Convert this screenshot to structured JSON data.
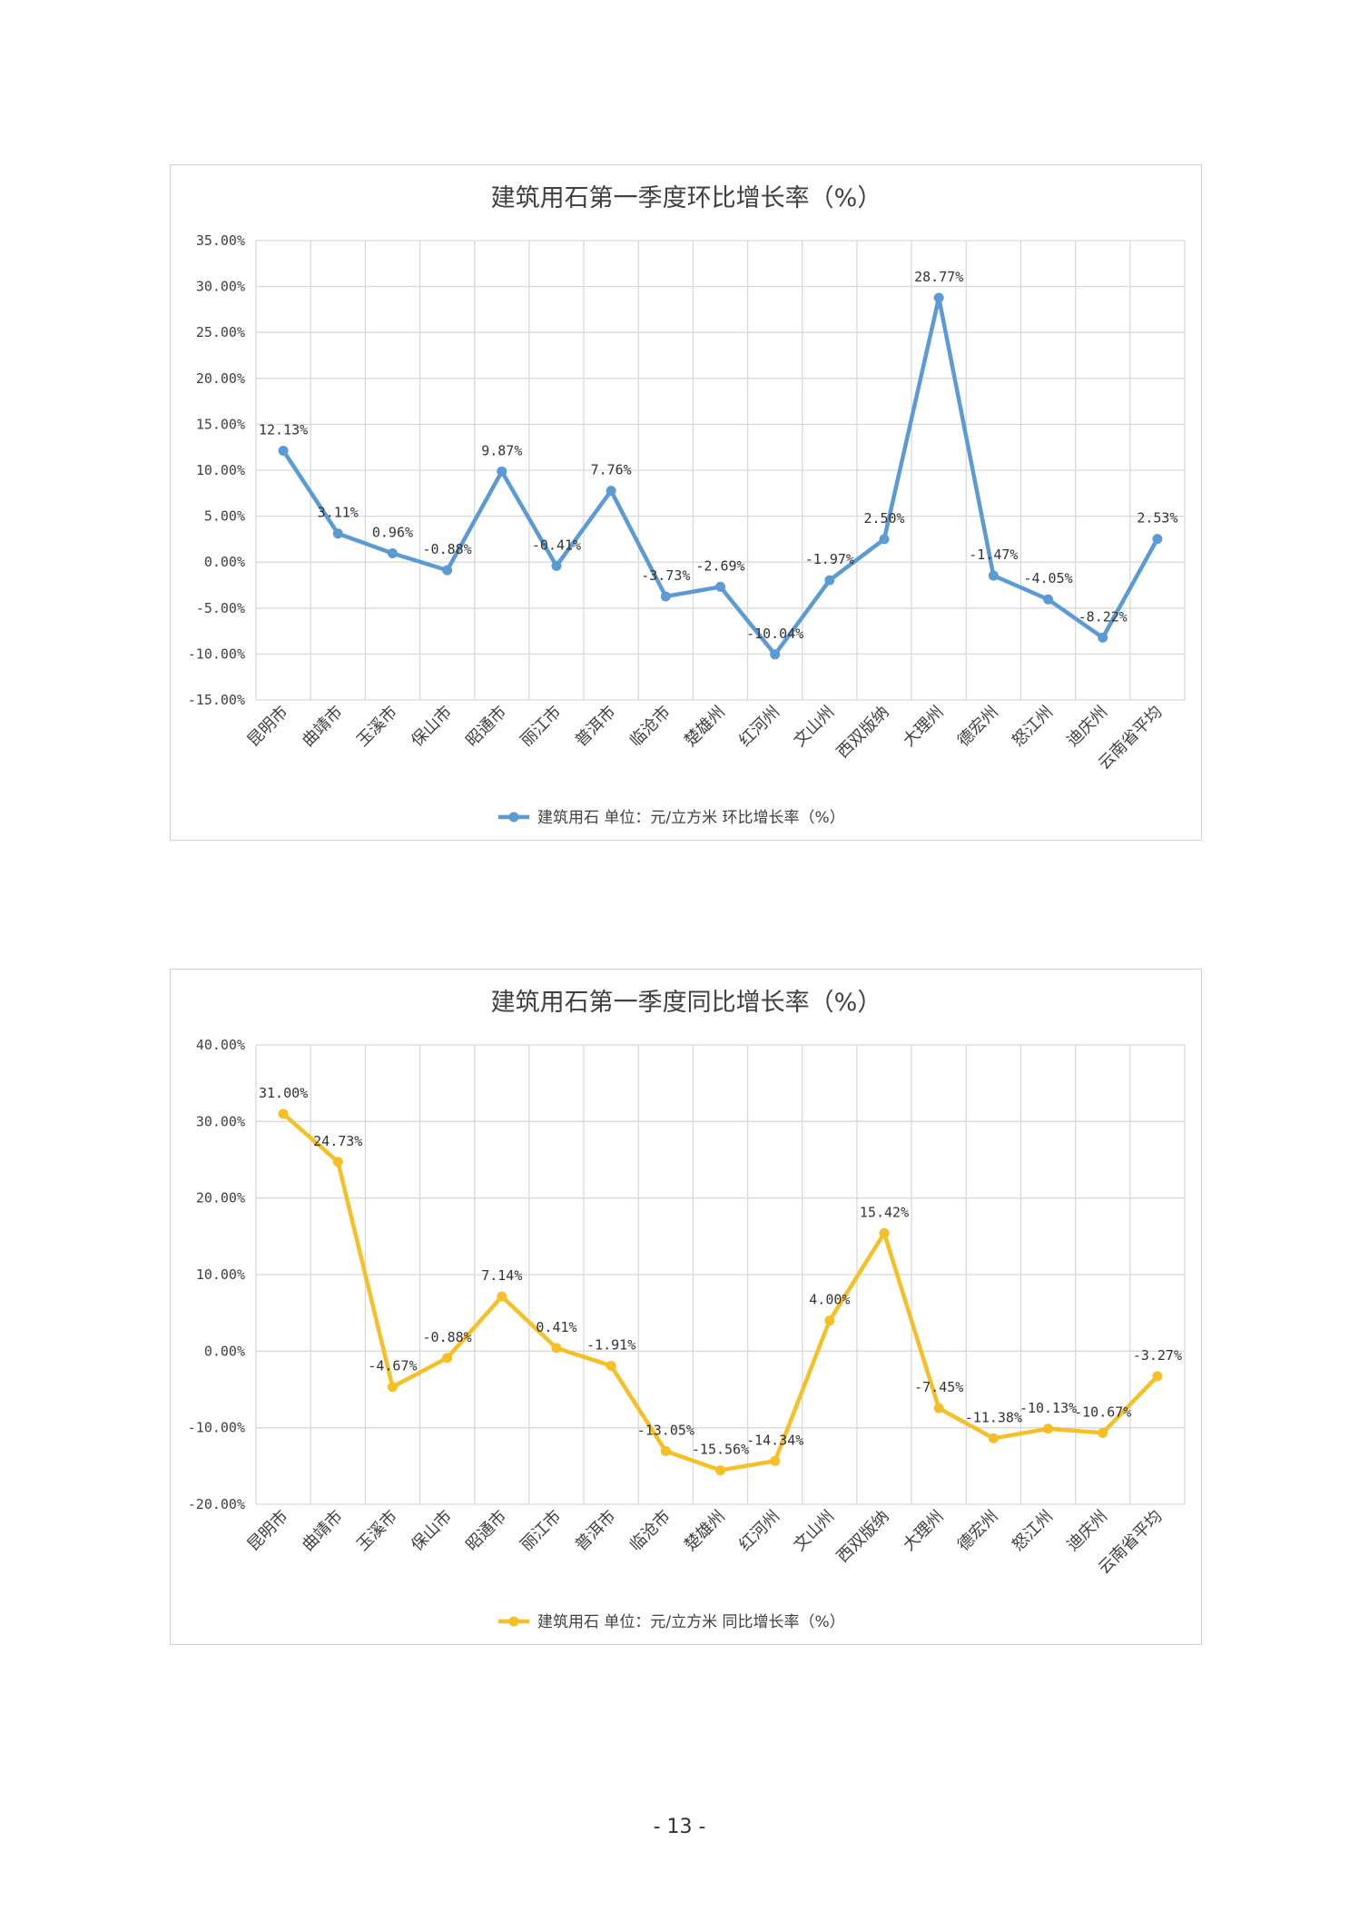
{
  "page_number": "- 13 -",
  "chart_data": [
    {
      "type": "line",
      "title": "建筑用石第一季度环比增长率（%）",
      "color": "#5b9bd5",
      "categories": [
        "昆明市",
        "曲靖市",
        "玉溪市",
        "保山市",
        "昭通市",
        "丽江市",
        "普洱市",
        "临沧市",
        "楚雄州",
        "红河州",
        "文山州",
        "西双版纳",
        "大理州",
        "德宏州",
        "怒江州",
        "迪庆州",
        "云南省平均"
      ],
      "series": [
        {
          "name": "建筑用石 单位：元/立方米 环比增长率（%）",
          "values": [
            12.13,
            3.11,
            0.96,
            -0.88,
            9.87,
            -0.41,
            7.76,
            -3.73,
            -2.69,
            -10.04,
            -1.97,
            2.5,
            28.77,
            -1.47,
            -4.05,
            -8.22,
            2.53
          ],
          "labels": [
            "12.13%",
            "3.11%",
            "0.96%",
            "-0.88%",
            "9.87%",
            "-0.41%",
            "7.76%",
            "-3.73%",
            "-2.69%",
            "-10.04%",
            "-1.97%",
            "2.50%",
            "28.77%",
            "-1.47%",
            "-4.05%",
            "-8.22%",
            "2.53%"
          ]
        }
      ],
      "ylim": [
        -15,
        35
      ],
      "yticks": [
        35,
        30,
        25,
        20,
        15,
        10,
        5,
        0,
        -5,
        -10,
        -15
      ],
      "ytick_labels": [
        "35.00%",
        "30.00%",
        "25.00%",
        "20.00%",
        "15.00%",
        "10.00%",
        "5.00%",
        "0.00%",
        "-5.00%",
        "-10.00%",
        "-15.00%"
      ],
      "grid": true,
      "legend_position": "bottom"
    },
    {
      "type": "line",
      "title": "建筑用石第一季度同比增长率（%）",
      "color": "#f5bf25",
      "categories": [
        "昆明市",
        "曲靖市",
        "玉溪市",
        "保山市",
        "昭通市",
        "丽江市",
        "普洱市",
        "临沧市",
        "楚雄州",
        "红河州",
        "文山州",
        "西双版纳",
        "大理州",
        "德宏州",
        "怒江州",
        "迪庆州",
        "云南省平均"
      ],
      "series": [
        {
          "name": "建筑用石 单位：元/立方米 同比增长率（%）",
          "values": [
            31.0,
            24.73,
            -4.67,
            -0.88,
            7.14,
            0.41,
            -1.91,
            -13.05,
            -15.56,
            -14.34,
            4.0,
            15.42,
            -7.45,
            -11.38,
            -10.13,
            -10.67,
            -3.27
          ],
          "labels": [
            "31.00%",
            "24.73%",
            "-4.67%",
            "-0.88%",
            "7.14%",
            "0.41%",
            "-1.91%",
            "-13.05%",
            "-15.56%",
            "-14.34%",
            "4.00%",
            "15.42%",
            "-7.45%",
            "-11.38%",
            "-10.13%",
            "-10.67%",
            "-3.27%"
          ]
        }
      ],
      "ylim": [
        -20,
        40
      ],
      "yticks": [
        40,
        30,
        20,
        10,
        0,
        -10,
        -20
      ],
      "ytick_labels": [
        "40.00%",
        "30.00%",
        "20.00%",
        "10.00%",
        "0.00%",
        "-10.00%",
        "-20.00%"
      ],
      "grid": true,
      "legend_position": "bottom"
    }
  ]
}
